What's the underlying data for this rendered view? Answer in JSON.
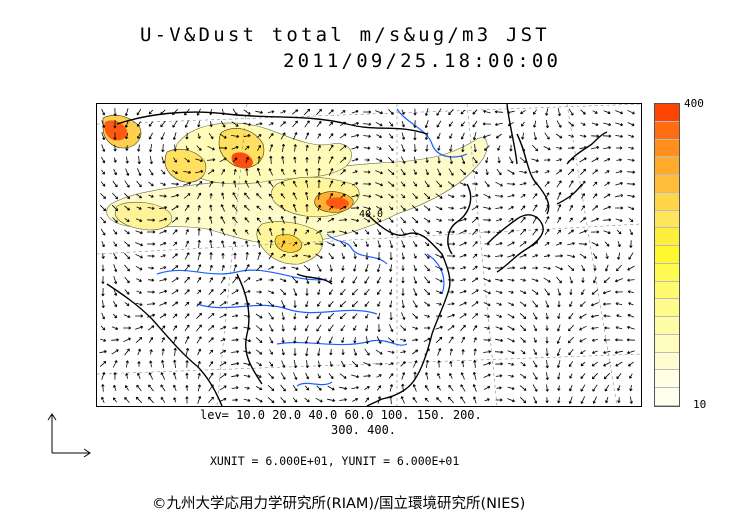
{
  "title": {
    "line1": "U-V&Dust total m/s&ug/m3 JST",
    "line2": "2011/09/25.18:00:00"
  },
  "colorbar": {
    "max_label": "400",
    "min_label": "10",
    "colors": [
      "#ff4400",
      "#ff6d10",
      "#ff8e1d",
      "#ffaa2a",
      "#ffbd39",
      "#ffd64a",
      "#ffe55a",
      "#ffef3d",
      "#fff730",
      "#fffa52",
      "#fffb70",
      "#fffc8c",
      "#fffca6",
      "#fffdbd",
      "#fffdd0",
      "#fffee2",
      "#ffffee"
    ]
  },
  "map": {
    "contour_label": "40.0",
    "colors": {
      "coast": "#000000",
      "river": "#1f5fff",
      "grid": "#888888",
      "vector": "#000000"
    }
  },
  "legend": {
    "levels_line1": "lev= 10.0 20.0 40.0 60.0 100. 150. 200.",
    "levels_line2": "300. 400."
  },
  "units": {
    "text": "XUNIT = 6.000E+01, YUNIT = 6.000E+01"
  },
  "copyright": "©九州大学応用力学研究所(RIAM)/国立環境研究所(NIES)"
}
